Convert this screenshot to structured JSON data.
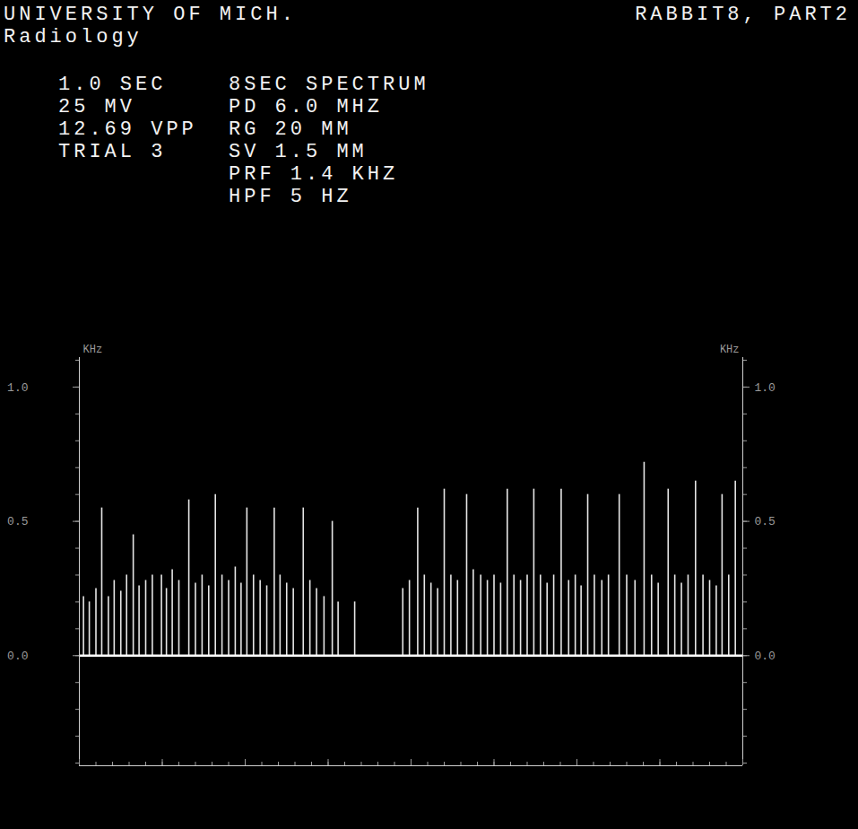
{
  "chart_data": {
    "type": "spectrum",
    "title": "UNIVERSITY OF MICH.",
    "subtitle": "Radiology",
    "annotations": {
      "corner": "RABBIT8, PART2",
      "settings_left": [
        "1.0 SEC",
        "25 MV",
        "12.69 VPP",
        "TRIAL 3"
      ],
      "settings_right": [
        "8SEC SPECTRUM",
        "PD 6.0 MHZ",
        "RG 20 MM",
        "SV 1.5 MM",
        "PRF 1.4 KHZ",
        "HPF 5 HZ"
      ]
    },
    "ylabel": "KHz",
    "x": [
      0.05,
      0.12,
      0.2,
      0.27,
      0.35,
      0.42,
      0.5,
      0.57,
      0.65,
      0.72,
      0.8,
      0.88,
      0.99,
      1.05,
      1.12,
      1.2,
      1.32,
      1.4,
      1.48,
      1.56,
      1.64,
      1.72,
      1.8,
      1.88,
      1.95,
      2.02,
      2.1,
      2.18,
      2.26,
      2.35,
      2.42,
      2.5,
      2.58,
      2.7,
      2.78,
      2.86,
      2.95,
      3.05,
      3.12,
      3.32,
      3.9,
      3.98,
      4.08,
      4.16,
      4.24,
      4.32,
      4.4,
      4.48,
      4.56,
      4.67,
      4.75,
      4.84,
      4.92,
      5.0,
      5.08,
      5.16,
      5.24,
      5.32,
      5.4,
      5.48,
      5.56,
      5.64,
      5.72,
      5.81,
      5.9,
      5.98,
      6.05,
      6.13,
      6.21,
      6.3,
      6.38,
      6.51,
      6.6,
      6.7,
      6.81,
      6.9,
      6.98,
      7.1,
      7.18,
      7.26,
      7.34,
      7.43,
      7.52,
      7.6,
      7.68,
      7.75,
      7.83,
      7.91
    ],
    "values": [
      0.22,
      0.2,
      0.25,
      0.55,
      0.22,
      0.28,
      0.24,
      0.3,
      0.45,
      0.26,
      0.28,
      0.3,
      0.3,
      0.25,
      0.32,
      0.28,
      0.58,
      0.27,
      0.3,
      0.26,
      0.6,
      0.3,
      0.28,
      0.33,
      0.27,
      0.55,
      0.3,
      0.28,
      0.26,
      0.55,
      0.3,
      0.27,
      0.25,
      0.55,
      0.28,
      0.25,
      0.22,
      0.5,
      0.2,
      0.2,
      0.25,
      0.28,
      0.55,
      0.3,
      0.27,
      0.25,
      0.62,
      0.3,
      0.28,
      0.6,
      0.32,
      0.3,
      0.28,
      0.3,
      0.27,
      0.62,
      0.3,
      0.28,
      0.3,
      0.62,
      0.3,
      0.27,
      0.3,
      0.62,
      0.28,
      0.3,
      0.26,
      0.6,
      0.3,
      0.28,
      0.3,
      0.6,
      0.3,
      0.28,
      0.72,
      0.3,
      0.27,
      0.62,
      0.3,
      0.27,
      0.3,
      0.65,
      0.3,
      0.28,
      0.26,
      0.6,
      0.3,
      0.65
    ],
    "color": "#ffffff",
    "xlim": [
      0,
      8
    ],
    "xticks": [
      0,
      1,
      2,
      3,
      4,
      5,
      6,
      7,
      8
    ],
    "ylim": [
      -0.41,
      1.11
    ],
    "yticks": [
      {
        "value": 0,
        "label": "0.0"
      },
      {
        "value": 0.5,
        "label": "0.5"
      },
      {
        "value": 1,
        "label": "1.0"
      }
    ],
    "tick_labels": "y",
    "grid": false
  }
}
